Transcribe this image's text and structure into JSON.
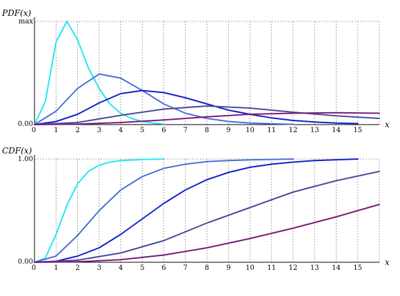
{
  "chart_data": [
    {
      "type": "line",
      "id": "pdf",
      "title": "PDF(x)",
      "xlabel": "x",
      "ylabel": "",
      "y_tick_labels": [
        "0.00",
        "max"
      ],
      "x_tick_labels": [
        "0",
        "1",
        "2",
        "3",
        "4",
        "5",
        "6",
        "7",
        "8",
        "9",
        "10",
        "11",
        "12",
        "13",
        "14",
        "15"
      ],
      "xlim": [
        0,
        16
      ],
      "ylim": [
        0,
        1
      ],
      "grid": true,
      "series": [
        {
          "color": "#22e8ee",
          "x": [
            0,
            0.5,
            1,
            1.5,
            2,
            2.5,
            3,
            3.5,
            4,
            4.5,
            5,
            5.5,
            6
          ],
          "y": [
            0,
            0.22,
            0.8,
            1.0,
            0.82,
            0.55,
            0.35,
            0.2,
            0.11,
            0.06,
            0.03,
            0.015,
            0.006
          ]
        },
        {
          "color": "#4a6fd6",
          "x": [
            0,
            1,
            2,
            3,
            4,
            5,
            6,
            7,
            8,
            9,
            10,
            11,
            12
          ],
          "y": [
            0,
            0.13,
            0.35,
            0.49,
            0.45,
            0.33,
            0.2,
            0.11,
            0.06,
            0.03,
            0.015,
            0.008,
            0.003
          ]
        },
        {
          "color": "#1020c8",
          "x": [
            0,
            1,
            2,
            3,
            4,
            5,
            6,
            7,
            8,
            9,
            10,
            11,
            12,
            13,
            14,
            15
          ],
          "y": [
            0,
            0.03,
            0.1,
            0.21,
            0.3,
            0.33,
            0.31,
            0.26,
            0.2,
            0.14,
            0.1,
            0.065,
            0.04,
            0.025,
            0.015,
            0.01
          ]
        },
        {
          "color": "#4a4a98",
          "x": [
            0,
            2,
            4,
            6,
            8,
            10,
            12,
            14,
            16
          ],
          "y": [
            0,
            0.02,
            0.09,
            0.15,
            0.18,
            0.16,
            0.12,
            0.085,
            0.06
          ]
        },
        {
          "color": "#7a1a7a",
          "x": [
            0,
            2,
            4,
            6,
            8,
            10,
            12,
            14,
            16
          ],
          "y": [
            0,
            0.005,
            0.02,
            0.045,
            0.075,
            0.1,
            0.11,
            0.115,
            0.11
          ]
        }
      ]
    },
    {
      "type": "line",
      "id": "cdf",
      "title": "CDF(x)",
      "xlabel": "x",
      "ylabel": "",
      "y_tick_labels": [
        "0.00",
        "1.00"
      ],
      "x_tick_labels": [
        "0",
        "1",
        "2",
        "3",
        "4",
        "5",
        "6",
        "7",
        "8",
        "9",
        "10",
        "11",
        "12",
        "13",
        "14",
        "15"
      ],
      "xlim": [
        0,
        16
      ],
      "ylim": [
        0,
        1
      ],
      "grid": true,
      "series": [
        {
          "color": "#22e8ee",
          "x": [
            0,
            0.5,
            1,
            1.5,
            2,
            2.5,
            3,
            3.5,
            4,
            4.5,
            5,
            6
          ],
          "y": [
            0,
            0.04,
            0.27,
            0.55,
            0.76,
            0.88,
            0.94,
            0.97,
            0.985,
            0.99,
            0.995,
            1.0
          ]
        },
        {
          "color": "#4a6fd6",
          "x": [
            0,
            1,
            2,
            3,
            4,
            5,
            6,
            7,
            8,
            9,
            10,
            11,
            12
          ],
          "y": [
            0,
            0.06,
            0.26,
            0.5,
            0.7,
            0.83,
            0.91,
            0.95,
            0.975,
            0.985,
            0.992,
            0.996,
            1.0
          ]
        },
        {
          "color": "#1020c8",
          "x": [
            0,
            1,
            2,
            3,
            4,
            5,
            6,
            7,
            8,
            9,
            10,
            11,
            12,
            13,
            14,
            15
          ],
          "y": [
            0,
            0.01,
            0.06,
            0.14,
            0.27,
            0.42,
            0.57,
            0.7,
            0.8,
            0.87,
            0.92,
            0.95,
            0.97,
            0.985,
            0.993,
            1.0
          ]
        },
        {
          "color": "#4a4a98",
          "x": [
            0,
            2,
            4,
            6,
            8,
            10,
            12,
            14,
            16
          ],
          "y": [
            0,
            0.02,
            0.09,
            0.21,
            0.38,
            0.53,
            0.68,
            0.79,
            0.88
          ]
        },
        {
          "color": "#7a1a7a",
          "x": [
            0,
            2,
            4,
            6,
            8,
            10,
            12,
            14,
            16
          ],
          "y": [
            0,
            0.005,
            0.025,
            0.07,
            0.14,
            0.23,
            0.33,
            0.44,
            0.56
          ]
        }
      ]
    }
  ]
}
